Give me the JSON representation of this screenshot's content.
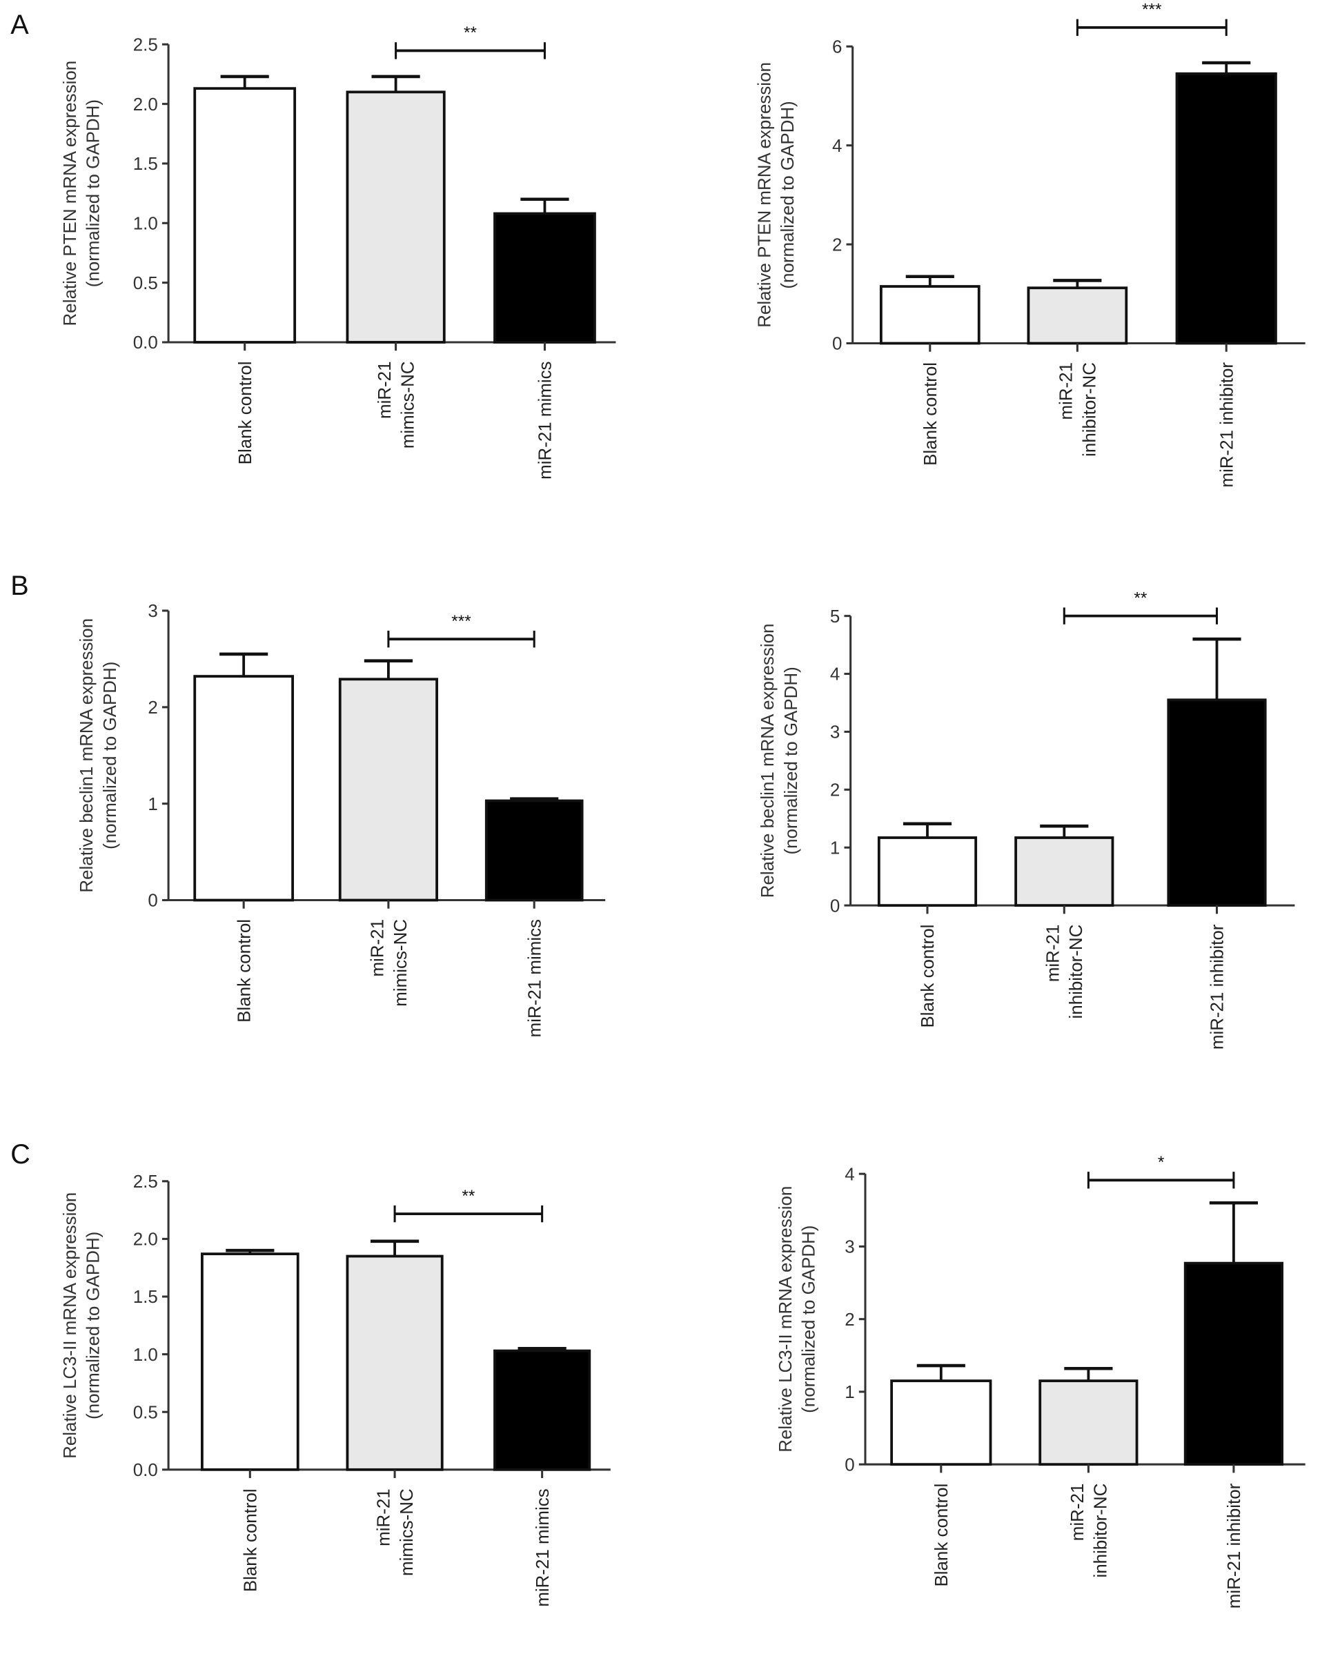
{
  "colors": {
    "blank": "#ffffff",
    "nc": "#e8e8e8",
    "treated": "#000000",
    "axis": "#333333"
  },
  "chart_data": [
    {
      "type": "bar",
      "panel": "A",
      "ylabel": [
        "Relative PTEN mRNA expression",
        "(normalized to GAPDH)"
      ],
      "categories": [
        [
          "Blank control"
        ],
        [
          "miR-21",
          "mimics-NC"
        ],
        [
          "miR-21 mimics"
        ]
      ],
      "values": [
        2.13,
        2.1,
        1.08
      ],
      "errors": [
        0.1,
        0.13,
        0.12
      ],
      "ylim": [
        0,
        2.5
      ],
      "yticks": [
        "0.0",
        "0.5",
        "1.0",
        "1.5",
        "2.0",
        "2.5"
      ],
      "ytick_values": [
        0,
        0.5,
        1,
        1.5,
        2,
        2.5
      ],
      "significance": {
        "from": 1,
        "to": 2,
        "label": "**"
      }
    },
    {
      "type": "bar",
      "panel": "",
      "ylabel": [
        "Relative PTEN mRNA expression",
        "(normalized to GAPDH)"
      ],
      "categories": [
        [
          "Blank control"
        ],
        [
          "miR-21",
          "inhibitor-NC"
        ],
        [
          "miR-21 inhibitor"
        ]
      ],
      "values": [
        1.15,
        1.12,
        5.45
      ],
      "errors": [
        0.2,
        0.15,
        0.22
      ],
      "ylim": [
        0,
        6
      ],
      "yticks": [
        "0",
        "2",
        "4",
        "6"
      ],
      "ytick_values": [
        0,
        2,
        4,
        6
      ],
      "significance": {
        "from": 1,
        "to": 2,
        "label": "***"
      }
    },
    {
      "type": "bar",
      "panel": "B",
      "ylabel": [
        "Relative beclin1 mRNA expression",
        "(normalized to GAPDH)"
      ],
      "categories": [
        [
          "Blank control"
        ],
        [
          "miR-21",
          "mimics-NC"
        ],
        [
          "miR-21 mimics"
        ]
      ],
      "values": [
        2.32,
        2.29,
        1.03
      ],
      "errors": [
        0.23,
        0.19,
        0.02
      ],
      "ylim": [
        0,
        3
      ],
      "yticks": [
        "0",
        "1",
        "2",
        "3"
      ],
      "ytick_values": [
        0,
        1,
        2,
        3
      ],
      "significance": {
        "from": 1,
        "to": 2,
        "label": "***"
      }
    },
    {
      "type": "bar",
      "panel": "",
      "ylabel": [
        "Relative beclin1 mRNA expression",
        "(normalized to GAPDH)"
      ],
      "categories": [
        [
          "Blank control"
        ],
        [
          "miR-21",
          "inhibitor-NC"
        ],
        [
          "miR-21 inhibitor"
        ]
      ],
      "values": [
        1.17,
        1.17,
        3.55
      ],
      "errors": [
        0.24,
        0.2,
        1.05
      ],
      "ylim": [
        0,
        5
      ],
      "yticks": [
        "0",
        "1",
        "2",
        "3",
        "4",
        "5"
      ],
      "ytick_values": [
        0,
        1,
        2,
        3,
        4,
        5
      ],
      "significance": {
        "from": 1,
        "to": 2,
        "label": "**"
      }
    },
    {
      "type": "bar",
      "panel": "C",
      "ylabel": [
        "Relative LC3-II mRNA expression",
        "(normalized to GAPDH)"
      ],
      "categories": [
        [
          "Blank control"
        ],
        [
          "miR-21",
          "mimics-NC"
        ],
        [
          "miR-21 mimics"
        ]
      ],
      "values": [
        1.87,
        1.85,
        1.03
      ],
      "errors": [
        0.03,
        0.13,
        0.02
      ],
      "ylim": [
        0,
        2.5
      ],
      "yticks": [
        "0.0",
        "0.5",
        "1.0",
        "1.5",
        "2.0",
        "2.5"
      ],
      "ytick_values": [
        0,
        0.5,
        1,
        1.5,
        2,
        2.5
      ],
      "significance": {
        "from": 1,
        "to": 2,
        "label": "**"
      }
    },
    {
      "type": "bar",
      "panel": "",
      "ylabel": [
        "Relative LC3-II mRNA expression",
        "(normalized to GAPDH)"
      ],
      "categories": [
        [
          "Blank control"
        ],
        [
          "miR-21",
          "inhibitor-NC"
        ],
        [
          "miR-21 inhibitor"
        ]
      ],
      "values": [
        1.15,
        1.15,
        2.77
      ],
      "errors": [
        0.21,
        0.17,
        0.83
      ],
      "ylim": [
        0,
        4
      ],
      "yticks": [
        "0",
        "1",
        "2",
        "3",
        "4"
      ],
      "ytick_values": [
        0,
        1,
        2,
        3,
        4
      ],
      "significance": {
        "from": 1,
        "to": 2,
        "label": "*"
      }
    }
  ]
}
